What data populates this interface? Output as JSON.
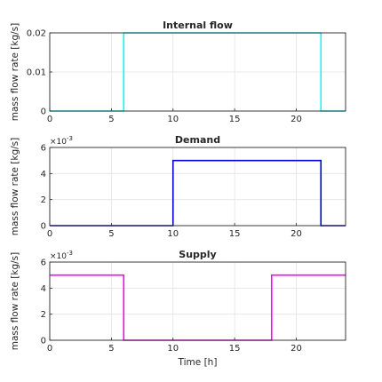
{
  "chart_data": [
    {
      "type": "line",
      "step": true,
      "title": "Internal flow",
      "ylabel": "mass flow rate [kg/s]",
      "xlabel": "",
      "exponent": "",
      "xlim": [
        0,
        24
      ],
      "ylim": [
        0,
        0.02
      ],
      "xticks": [
        0,
        5,
        10,
        15,
        20
      ],
      "yticks": [
        0,
        0.01,
        0.02
      ],
      "yticklabels": [
        "0",
        "0.01",
        "0.02"
      ],
      "grid": true,
      "color": "#00ffff",
      "x": [
        0,
        6,
        6,
        22,
        22,
        24
      ],
      "y": [
        0,
        0,
        0.02,
        0.02,
        0,
        0
      ]
    },
    {
      "type": "line",
      "step": true,
      "title": "Demand",
      "ylabel": "mass flow rate [kg/s]",
      "xlabel": "",
      "exponent": "×10",
      "exponent_power": "-3",
      "xlim": [
        0,
        24
      ],
      "ylim": [
        0,
        0.006
      ],
      "xticks": [
        0,
        5,
        10,
        15,
        20
      ],
      "yticks": [
        0,
        0.002,
        0.004,
        0.006
      ],
      "yticklabels": [
        "0",
        "2",
        "4",
        "6"
      ],
      "grid": true,
      "color": "#0000cc",
      "x": [
        0,
        10,
        10,
        22,
        22,
        24
      ],
      "y": [
        0,
        0,
        0.005,
        0.005,
        0,
        0
      ]
    },
    {
      "type": "line",
      "step": true,
      "title": "Supply",
      "ylabel": "mass flow rate [kg/s]",
      "xlabel": "Time [h]",
      "exponent": "×10",
      "exponent_power": "-3",
      "xlim": [
        0,
        24
      ],
      "ylim": [
        0,
        0.006
      ],
      "xticks": [
        0,
        5,
        10,
        15,
        20
      ],
      "yticks": [
        0,
        0.002,
        0.004,
        0.006
      ],
      "yticklabels": [
        "0",
        "2",
        "4",
        "6"
      ],
      "grid": true,
      "color": "#ff00ff",
      "x": [
        0,
        6,
        6,
        18,
        18,
        24
      ],
      "y": [
        0.005,
        0.005,
        0,
        0,
        0.005,
        0.005
      ]
    }
  ]
}
